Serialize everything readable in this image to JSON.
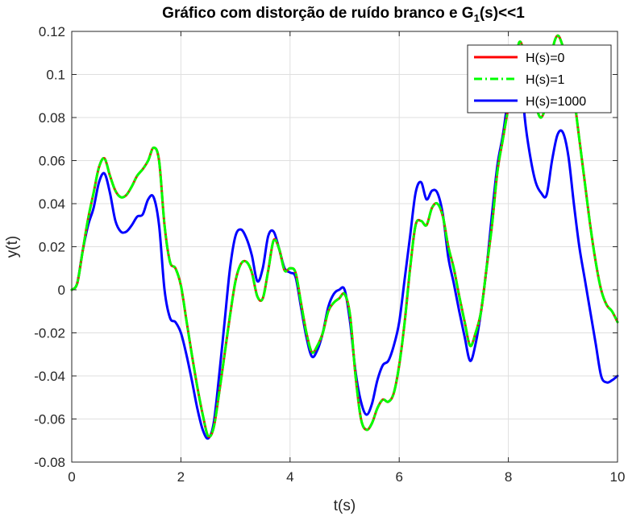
{
  "chart_data": {
    "type": "line",
    "title": "Gráfico com distorção de ruído branco e G",
    "title_subscript": "1",
    "title_suffix": "(s)<<1",
    "xlabel": "t(s)",
    "ylabel": "y(t)",
    "xlim": [
      0,
      10
    ],
    "ylim": [
      -0.08,
      0.12
    ],
    "xticks": [
      0,
      2,
      4,
      6,
      8,
      10
    ],
    "xtick_labels": [
      "0",
      "2",
      "4",
      "6",
      "8",
      "10"
    ],
    "yticks": [
      -0.08,
      -0.06,
      -0.04,
      -0.02,
      0,
      0.02,
      0.04,
      0.06,
      0.08,
      0.1,
      0.12
    ],
    "ytick_labels": [
      "-0.08",
      "-0.06",
      "-0.04",
      "-0.02",
      "0",
      "0.02",
      "0.04",
      "0.06",
      "0.08",
      "0.1",
      "0.12"
    ],
    "grid": true,
    "legend_position": "top-right",
    "series": [
      {
        "name": "H(s)=0",
        "color": "#ff0000",
        "style": "solid",
        "x": [
          0,
          0.1,
          0.2,
          0.3,
          0.4,
          0.5,
          0.6,
          0.7,
          0.8,
          0.9,
          1.0,
          1.1,
          1.2,
          1.3,
          1.4,
          1.5,
          1.6,
          1.7,
          1.8,
          1.9,
          2.0,
          2.1,
          2.2,
          2.3,
          2.4,
          2.5,
          2.6,
          2.7,
          2.8,
          2.9,
          3.0,
          3.1,
          3.2,
          3.3,
          3.4,
          3.5,
          3.6,
          3.7,
          3.8,
          3.9,
          4.0,
          4.1,
          4.2,
          4.3,
          4.4,
          4.5,
          4.6,
          4.7,
          4.8,
          4.9,
          5.0,
          5.1,
          5.2,
          5.3,
          5.4,
          5.5,
          5.6,
          5.7,
          5.8,
          5.9,
          6.0,
          6.1,
          6.2,
          6.3,
          6.4,
          6.5,
          6.6,
          6.7,
          6.8,
          6.9,
          7.0,
          7.1,
          7.2,
          7.3,
          7.4,
          7.5,
          7.6,
          7.7,
          7.8,
          7.9,
          8.0,
          8.1,
          8.2,
          8.3,
          8.4,
          8.5,
          8.6,
          8.7,
          8.8,
          8.9,
          9.0,
          9.1,
          9.2,
          9.3,
          9.4,
          9.5,
          9.6,
          9.7,
          9.8,
          9.9,
          10.0
        ],
        "y": [
          0,
          0.003,
          0.018,
          0.033,
          0.045,
          0.057,
          0.061,
          0.053,
          0.046,
          0.043,
          0.044,
          0.048,
          0.053,
          0.056,
          0.06,
          0.066,
          0.06,
          0.03,
          0.013,
          0.01,
          0.002,
          -0.014,
          -0.03,
          -0.045,
          -0.058,
          -0.068,
          -0.064,
          -0.048,
          -0.03,
          -0.012,
          0.004,
          0.012,
          0.013,
          0.008,
          -0.003,
          -0.004,
          0.009,
          0.023,
          0.019,
          0.009,
          0.01,
          0.008,
          -0.006,
          -0.02,
          -0.029,
          -0.026,
          -0.02,
          -0.01,
          -0.006,
          -0.004,
          -0.002,
          -0.012,
          -0.04,
          -0.06,
          -0.065,
          -0.062,
          -0.055,
          -0.051,
          -0.052,
          -0.048,
          -0.035,
          -0.015,
          0.01,
          0.03,
          0.032,
          0.03,
          0.038,
          0.04,
          0.034,
          0.02,
          0.01,
          -0.003,
          -0.015,
          -0.026,
          -0.02,
          -0.01,
          0.01,
          0.03,
          0.055,
          0.07,
          0.085,
          0.1,
          0.115,
          0.108,
          0.09,
          0.085,
          0.08,
          0.088,
          0.11,
          0.118,
          0.113,
          0.105,
          0.09,
          0.07,
          0.05,
          0.03,
          0.013,
          0.0,
          -0.007,
          -0.01,
          -0.015
        ]
      },
      {
        "name": "H(s)=1",
        "color": "#00ff00",
        "style": "dashdot",
        "x": [
          0,
          0.1,
          0.2,
          0.3,
          0.4,
          0.5,
          0.6,
          0.7,
          0.8,
          0.9,
          1.0,
          1.1,
          1.2,
          1.3,
          1.4,
          1.5,
          1.6,
          1.7,
          1.8,
          1.9,
          2.0,
          2.1,
          2.2,
          2.3,
          2.4,
          2.5,
          2.6,
          2.7,
          2.8,
          2.9,
          3.0,
          3.1,
          3.2,
          3.3,
          3.4,
          3.5,
          3.6,
          3.7,
          3.8,
          3.9,
          4.0,
          4.1,
          4.2,
          4.3,
          4.4,
          4.5,
          4.6,
          4.7,
          4.8,
          4.9,
          5.0,
          5.1,
          5.2,
          5.3,
          5.4,
          5.5,
          5.6,
          5.7,
          5.8,
          5.9,
          6.0,
          6.1,
          6.2,
          6.3,
          6.4,
          6.5,
          6.6,
          6.7,
          6.8,
          6.9,
          7.0,
          7.1,
          7.2,
          7.3,
          7.4,
          7.5,
          7.6,
          7.7,
          7.8,
          7.9,
          8.0,
          8.1,
          8.2,
          8.3,
          8.4,
          8.5,
          8.6,
          8.7,
          8.8,
          8.9,
          9.0,
          9.1,
          9.2,
          9.3,
          9.4,
          9.5,
          9.6,
          9.7,
          9.8,
          9.9,
          10.0
        ],
        "y": [
          0,
          0.003,
          0.018,
          0.033,
          0.045,
          0.057,
          0.061,
          0.053,
          0.046,
          0.043,
          0.044,
          0.048,
          0.053,
          0.056,
          0.06,
          0.066,
          0.06,
          0.03,
          0.013,
          0.01,
          0.002,
          -0.014,
          -0.03,
          -0.045,
          -0.058,
          -0.068,
          -0.064,
          -0.048,
          -0.03,
          -0.012,
          0.004,
          0.012,
          0.013,
          0.008,
          -0.003,
          -0.004,
          0.009,
          0.023,
          0.019,
          0.009,
          0.01,
          0.008,
          -0.006,
          -0.02,
          -0.029,
          -0.026,
          -0.02,
          -0.01,
          -0.006,
          -0.004,
          -0.002,
          -0.012,
          -0.04,
          -0.06,
          -0.065,
          -0.062,
          -0.055,
          -0.051,
          -0.052,
          -0.048,
          -0.035,
          -0.015,
          0.01,
          0.03,
          0.032,
          0.03,
          0.038,
          0.04,
          0.034,
          0.02,
          0.01,
          -0.003,
          -0.015,
          -0.026,
          -0.02,
          -0.01,
          0.01,
          0.03,
          0.055,
          0.07,
          0.085,
          0.1,
          0.115,
          0.108,
          0.09,
          0.085,
          0.08,
          0.088,
          0.11,
          0.118,
          0.113,
          0.105,
          0.09,
          0.07,
          0.05,
          0.03,
          0.013,
          0.0,
          -0.007,
          -0.01,
          -0.015
        ]
      },
      {
        "name": "H(s)=1000",
        "color": "#0000ff",
        "style": "solid",
        "x": [
          0,
          0.1,
          0.2,
          0.3,
          0.4,
          0.5,
          0.6,
          0.7,
          0.8,
          0.9,
          1.0,
          1.1,
          1.2,
          1.3,
          1.4,
          1.5,
          1.6,
          1.7,
          1.8,
          1.9,
          2.0,
          2.1,
          2.2,
          2.3,
          2.4,
          2.5,
          2.6,
          2.7,
          2.8,
          2.9,
          3.0,
          3.1,
          3.2,
          3.3,
          3.4,
          3.5,
          3.6,
          3.7,
          3.8,
          3.9,
          4.0,
          4.1,
          4.2,
          4.3,
          4.4,
          4.5,
          4.6,
          4.7,
          4.8,
          4.9,
          5.0,
          5.1,
          5.2,
          5.3,
          5.4,
          5.5,
          5.6,
          5.7,
          5.8,
          5.9,
          6.0,
          6.1,
          6.2,
          6.3,
          6.4,
          6.5,
          6.6,
          6.7,
          6.8,
          6.9,
          7.0,
          7.1,
          7.2,
          7.3,
          7.4,
          7.5,
          7.6,
          7.7,
          7.8,
          7.9,
          8.0,
          8.1,
          8.2,
          8.3,
          8.4,
          8.5,
          8.6,
          8.7,
          8.8,
          8.9,
          9.0,
          9.1,
          9.2,
          9.3,
          9.4,
          9.5,
          9.6,
          9.7,
          9.8,
          9.9,
          10.0
        ],
        "y": [
          0,
          0.003,
          0.018,
          0.03,
          0.038,
          0.05,
          0.054,
          0.045,
          0.032,
          0.027,
          0.027,
          0.03,
          0.034,
          0.035,
          0.042,
          0.043,
          0.03,
          0.0,
          -0.013,
          -0.015,
          -0.02,
          -0.03,
          -0.042,
          -0.055,
          -0.065,
          -0.069,
          -0.062,
          -0.04,
          -0.015,
          0.01,
          0.025,
          0.028,
          0.024,
          0.016,
          0.004,
          0.01,
          0.025,
          0.027,
          0.019,
          0.01,
          0.008,
          0.006,
          -0.008,
          -0.022,
          -0.031,
          -0.028,
          -0.02,
          -0.008,
          -0.002,
          0.0,
          0.0,
          -0.015,
          -0.038,
          -0.052,
          -0.058,
          -0.053,
          -0.042,
          -0.035,
          -0.033,
          -0.026,
          -0.015,
          0.005,
          0.025,
          0.045,
          0.05,
          0.042,
          0.046,
          0.045,
          0.035,
          0.015,
          0.003,
          -0.01,
          -0.022,
          -0.033,
          -0.025,
          -0.01,
          0.01,
          0.035,
          0.058,
          0.072,
          0.09,
          0.105,
          0.112,
          0.08,
          0.062,
          0.05,
          0.045,
          0.044,
          0.06,
          0.072,
          0.073,
          0.062,
          0.04,
          0.02,
          0.005,
          -0.01,
          -0.025,
          -0.04,
          -0.043,
          -0.042,
          -0.04
        ]
      }
    ]
  }
}
